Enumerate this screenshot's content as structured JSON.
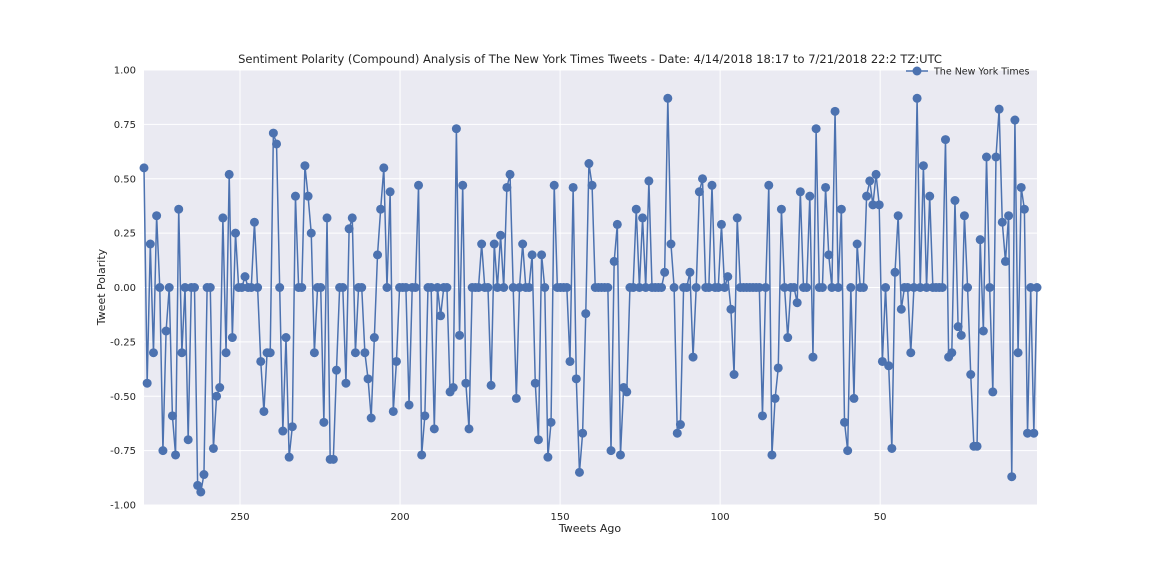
{
  "chart_data": {
    "type": "line",
    "title": "Sentiment Polarity (Compound) Analysis of The New York Times Tweets - Date: 4/14/2018 18:17 to 7/21/2018 22:2 TZ:UTC",
    "xlabel": "Tweets Ago",
    "ylabel": "Tweet Polarity",
    "xlim": [
      280,
      1
    ],
    "ylim": [
      -1.0,
      1.0
    ],
    "x_inverted": true,
    "x_ticks": [
      250,
      200,
      150,
      100,
      50
    ],
    "y_ticks": [
      -1.0,
      -0.75,
      -0.5,
      -0.25,
      0.0,
      0.25,
      0.5,
      0.75,
      1.0
    ],
    "y_tick_labels": [
      "-1.00",
      "-0.75",
      "-0.50",
      "-0.25",
      "0.00",
      "0.25",
      "0.50",
      "0.75",
      "1.00"
    ],
    "grid": true,
    "legend_position": "top-right",
    "series": [
      {
        "name": "The New York Times",
        "color": "#4c72b0",
        "values": [
          0.55,
          -0.44,
          0.2,
          -0.3,
          0.33,
          0.0,
          -0.75,
          -0.2,
          0.0,
          -0.59,
          -0.77,
          0.36,
          -0.3,
          0.0,
          -0.7,
          0.0,
          0.0,
          -0.91,
          -0.94,
          -0.86,
          0.0,
          0.0,
          -0.74,
          -0.5,
          -0.46,
          0.32,
          -0.3,
          0.52,
          -0.23,
          0.25,
          0.0,
          0.0,
          0.05,
          0.0,
          0.0,
          0.3,
          0.0,
          -0.34,
          -0.57,
          -0.3,
          -0.3,
          0.71,
          0.66,
          0.0,
          -0.66,
          -0.23,
          -0.78,
          -0.64,
          0.42,
          0.0,
          0.0,
          0.56,
          0.42,
          0.25,
          -0.3,
          0.0,
          0.0,
          -0.62,
          0.32,
          -0.79,
          -0.79,
          -0.38,
          0.0,
          0.0,
          -0.44,
          0.27,
          0.32,
          -0.3,
          0.0,
          0.0,
          -0.3,
          -0.42,
          -0.6,
          -0.23,
          0.15,
          0.36,
          0.55,
          0.0,
          0.44,
          -0.57,
          -0.34,
          0.0,
          0.0,
          0.0,
          -0.54,
          0.0,
          0.0,
          0.47,
          -0.77,
          -0.59,
          0.0,
          0.0,
          -0.65,
          0.0,
          -0.13,
          0.0,
          0.0,
          -0.48,
          -0.46,
          0.73,
          -0.22,
          0.47,
          -0.44,
          -0.65,
          0.0,
          0.0,
          0.0,
          0.2,
          0.0,
          0.0,
          -0.45,
          0.2,
          0.0,
          0.24,
          0.0,
          0.46,
          0.52,
          0.0,
          -0.51,
          0.0,
          0.2,
          0.0,
          0.0,
          0.15,
          -0.44,
          -0.7,
          0.15,
          0.0,
          -0.78,
          -0.62,
          0.47,
          0.0,
          0.0,
          0.0,
          0.0,
          -0.34,
          0.46,
          -0.42,
          -0.85,
          -0.67,
          -0.12,
          0.57,
          0.47,
          0.0,
          0.0,
          0.0,
          0.0,
          0.0,
          -0.75,
          0.12,
          0.29,
          -0.77,
          -0.46,
          -0.48,
          0.0,
          0.0,
          0.36,
          0.0,
          0.32,
          0.0,
          0.49,
          0.0,
          0.0,
          0.0,
          0.0,
          0.07,
          0.87,
          0.2,
          0.0,
          -0.67,
          -0.63,
          0.0,
          0.0,
          0.07,
          -0.32,
          0.0,
          0.44,
          0.5,
          0.0,
          0.0,
          0.47,
          0.0,
          0.0,
          0.29,
          0.0,
          0.05,
          -0.1,
          -0.4,
          0.32,
          0.0,
          0.0,
          0.0,
          0.0,
          0.0,
          0.0,
          0.0,
          -0.59,
          0.0,
          0.47,
          -0.77,
          -0.51,
          -0.37,
          0.36,
          0.0,
          -0.23,
          0.0,
          0.0,
          -0.07,
          0.44,
          0.0,
          0.0,
          0.42,
          -0.32,
          0.73,
          0.0,
          0.0,
          0.46,
          0.15,
          0.0,
          0.81,
          0.0,
          0.36,
          -0.62,
          -0.75,
          0.0,
          -0.51,
          0.2,
          0.0,
          0.0,
          0.42,
          0.49,
          0.38,
          0.52,
          0.38,
          -0.34,
          0.0,
          -0.36,
          -0.74,
          0.07,
          0.33,
          -0.1,
          0.0,
          0.0,
          -0.3,
          0.0,
          0.87,
          0.0,
          0.56,
          0.0,
          0.42,
          0.0,
          0.0,
          0.0,
          0.0,
          0.68,
          -0.32,
          -0.3,
          0.4,
          -0.18,
          -0.22,
          0.33,
          0.0,
          -0.4,
          -0.73,
          -0.73,
          0.22,
          -0.2,
          0.6,
          0.0,
          -0.48,
          0.6,
          0.82,
          0.3,
          0.12,
          0.33,
          -0.87,
          0.77,
          -0.3,
          0.46,
          0.36,
          -0.67,
          0.0,
          -0.67,
          0.0
        ]
      }
    ]
  }
}
